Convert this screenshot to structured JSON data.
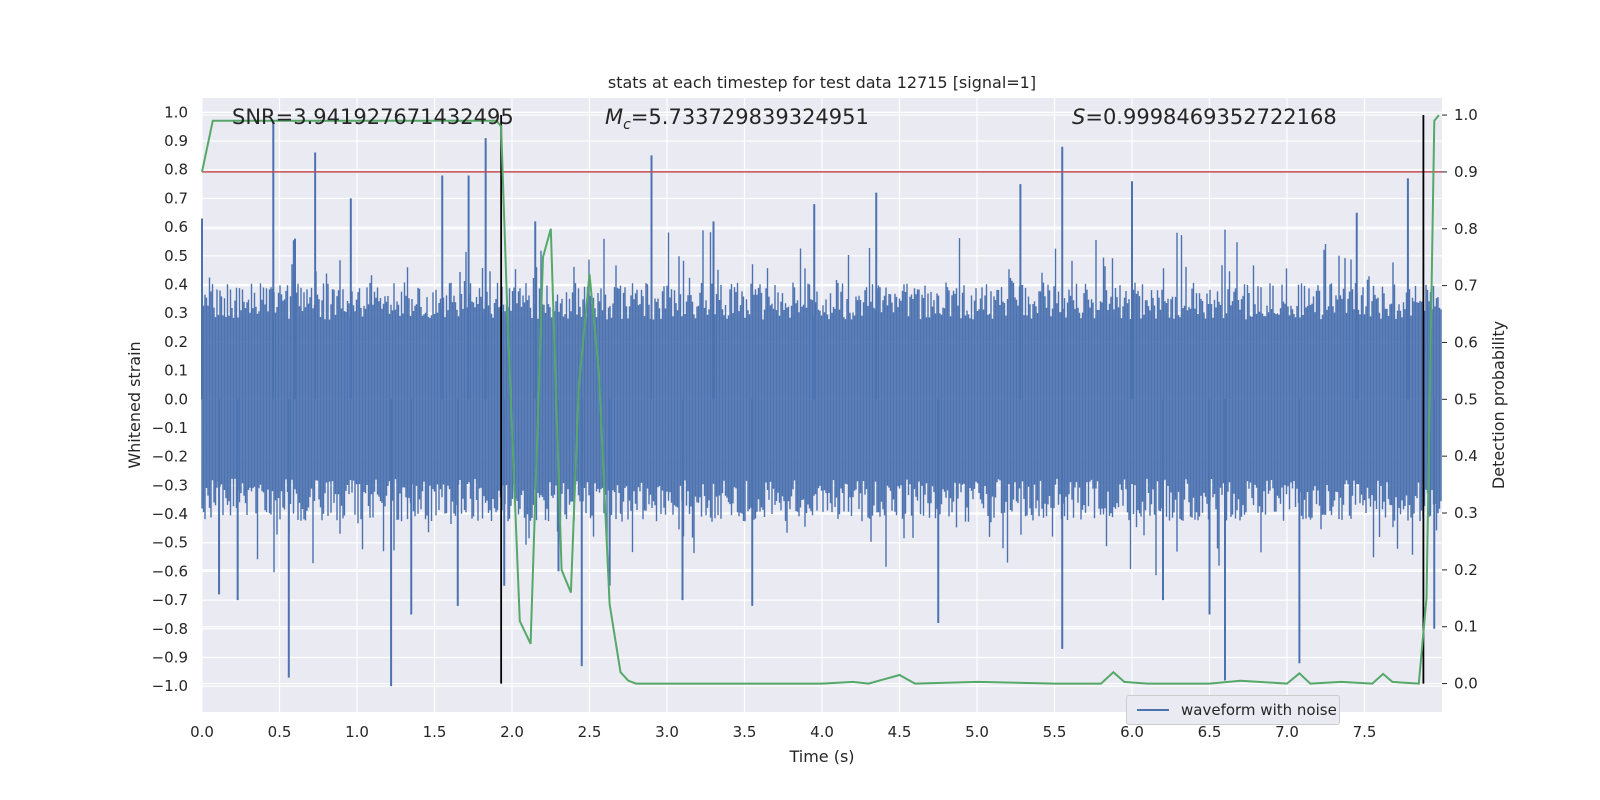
{
  "chart_data": {
    "type": "line",
    "title": "stats at each timestep for test data 12715 [signal=1]",
    "xlabel": "Time (s)",
    "ylabel_left": "Whitened strain",
    "ylabel_right": "Detection probability",
    "xlim": [
      0.0,
      8.0
    ],
    "ylim_left": [
      -1.09,
      1.05
    ],
    "ylim_right": [
      -0.05,
      1.03
    ],
    "xticks": [
      "0.0",
      "0.5",
      "1.0",
      "1.5",
      "2.0",
      "2.5",
      "3.0",
      "3.5",
      "4.0",
      "4.5",
      "5.0",
      "5.5",
      "6.0",
      "6.5",
      "7.0",
      "7.5"
    ],
    "yticks_left": [
      "1.0",
      "0.9",
      "0.8",
      "0.7",
      "0.6",
      "0.5",
      "0.4",
      "0.3",
      "0.2",
      "0.1",
      "0.0",
      "-0.1",
      "-0.2",
      "-0.3",
      "-0.4",
      "-0.5",
      "-0.6",
      "-0.7",
      "-0.8",
      "-0.9",
      "-1.0"
    ],
    "yticks_right": [
      "1.0",
      "0.9",
      "0.8",
      "0.7",
      "0.6",
      "0.5",
      "0.4",
      "0.3",
      "0.2",
      "0.1",
      "0.0"
    ],
    "annotations": {
      "snr": "SNR=3.941927671432495",
      "mc_symbol": "M",
      "mc_sub": "c",
      "mc_value": "=5.733729839324951",
      "s_symbol": "S",
      "s_value": "=0.9998469352722168"
    },
    "threshold_right": 0.9,
    "vertical_markers_x": [
      1.93,
      7.88
    ],
    "legend": "waveform with noise",
    "series": [
      {
        "name": "waveform with noise",
        "axis": "left",
        "envelope_abs": 0.37,
        "spikes": [
          {
            "x": 0.0,
            "y": 0.63
          },
          {
            "x": 0.11,
            "y": -0.68
          },
          {
            "x": 0.23,
            "y": -0.7
          },
          {
            "x": 0.46,
            "y": 0.97
          },
          {
            "x": 0.56,
            "y": -0.97
          },
          {
            "x": 0.6,
            "y": 0.56
          },
          {
            "x": 0.73,
            "y": 0.86
          },
          {
            "x": 0.96,
            "y": 0.7
          },
          {
            "x": 1.22,
            "y": -1.0
          },
          {
            "x": 1.35,
            "y": -0.75
          },
          {
            "x": 1.55,
            "y": 0.78
          },
          {
            "x": 1.65,
            "y": -0.72
          },
          {
            "x": 1.72,
            "y": 0.78
          },
          {
            "x": 1.83,
            "y": 0.91
          },
          {
            "x": 1.95,
            "y": -0.65
          },
          {
            "x": 2.15,
            "y": 0.62
          },
          {
            "x": 2.3,
            "y": -0.6
          },
          {
            "x": 2.45,
            "y": -0.93
          },
          {
            "x": 2.63,
            "y": -0.65
          },
          {
            "x": 2.9,
            "y": 0.85
          },
          {
            "x": 3.1,
            "y": -0.7
          },
          {
            "x": 3.3,
            "y": 0.62
          },
          {
            "x": 3.55,
            "y": -0.72
          },
          {
            "x": 3.95,
            "y": 0.68
          },
          {
            "x": 4.35,
            "y": 0.72
          },
          {
            "x": 4.75,
            "y": -0.78
          },
          {
            "x": 5.28,
            "y": 0.75
          },
          {
            "x": 5.55,
            "y": 0.88
          },
          {
            "x": 5.55,
            "y": -0.87
          },
          {
            "x": 6.0,
            "y": 0.76
          },
          {
            "x": 6.2,
            "y": -0.7
          },
          {
            "x": 6.5,
            "y": -0.75
          },
          {
            "x": 6.6,
            "y": -0.98
          },
          {
            "x": 7.08,
            "y": -0.92
          },
          {
            "x": 7.45,
            "y": 0.65
          },
          {
            "x": 7.78,
            "y": 0.77
          },
          {
            "x": 7.95,
            "y": -0.8
          }
        ]
      },
      {
        "name": "detection probability",
        "axis": "right",
        "x": [
          0.0,
          0.07,
          0.12,
          0.25,
          0.5,
          1.0,
          1.5,
          1.9,
          1.93,
          1.97,
          2.05,
          2.12,
          2.2,
          2.25,
          2.32,
          2.38,
          2.43,
          2.5,
          2.56,
          2.63,
          2.7,
          2.75,
          2.8,
          2.9,
          3.0,
          3.2,
          3.5,
          4.0,
          4.2,
          4.3,
          4.5,
          4.6,
          5.0,
          5.5,
          5.8,
          5.88,
          5.95,
          6.1,
          6.5,
          6.7,
          7.0,
          7.08,
          7.15,
          7.35,
          7.55,
          7.62,
          7.68,
          7.85,
          7.9,
          7.95,
          7.98
        ],
        "y": [
          0.9,
          0.99,
          0.99,
          0.99,
          0.99,
          0.99,
          0.99,
          0.99,
          0.98,
          0.65,
          0.11,
          0.07,
          0.75,
          0.8,
          0.2,
          0.16,
          0.52,
          0.72,
          0.55,
          0.14,
          0.02,
          0.005,
          0.0,
          0.0,
          0.0,
          0.0,
          0.0,
          0.0,
          0.003,
          0.0,
          0.015,
          0.0,
          0.003,
          0.0,
          0.0,
          0.02,
          0.003,
          0.0,
          0.0,
          0.005,
          0.0,
          0.018,
          0.0,
          0.003,
          0.0,
          0.017,
          0.003,
          0.0,
          0.15,
          0.99,
          1.0
        ]
      }
    ]
  }
}
